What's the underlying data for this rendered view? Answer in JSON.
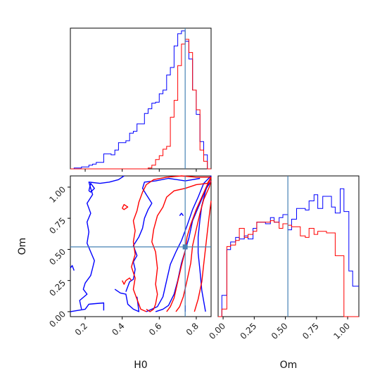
{
  "chart_data": {
    "type": "corner",
    "parameters": [
      "H0",
      "Om"
    ],
    "truth": {
      "H0": 0.74,
      "Om": 0.52
    },
    "colors": {
      "blue": "#0000ff",
      "red": "#ff0000",
      "truth": "#4682b4"
    },
    "H0_axis": {
      "range": [
        0.12,
        0.88
      ],
      "ticks": [
        0.2,
        0.4,
        0.6,
        0.8
      ],
      "tick_labels": [
        "0.2",
        "0.4",
        "0.6",
        "0.8"
      ],
      "xlabel": "H0"
    },
    "Om_axis": {
      "range": [
        -0.04,
        1.09
      ],
      "ticks": [
        0.0,
        0.25,
        0.5,
        0.75,
        1.0
      ],
      "tick_labels": [
        "0.00",
        "0.25",
        "0.50",
        "0.75",
        "1.00"
      ],
      "label": "Om"
    },
    "hist_H0": {
      "bin_width": 0.02,
      "blue": {
        "x": [
          0.12,
          0.14,
          0.16,
          0.18,
          0.2,
          0.22,
          0.24,
          0.26,
          0.28,
          0.3,
          0.32,
          0.34,
          0.36,
          0.38,
          0.4,
          0.42,
          0.44,
          0.46,
          0.48,
          0.5,
          0.52,
          0.54,
          0.56,
          0.58,
          0.6,
          0.62,
          0.64,
          0.66,
          0.68,
          0.7,
          0.72,
          0.74,
          0.76,
          0.78,
          0.8,
          0.82,
          0.84,
          0.86
        ],
        "y": [
          0,
          1,
          1,
          2,
          2,
          4,
          5,
          7,
          7,
          16,
          16,
          15,
          20,
          28,
          28,
          30,
          38,
          40,
          48,
          48,
          59,
          64,
          70,
          71,
          80,
          84,
          100,
          108,
          131,
          144,
          147,
          136,
          117,
          84,
          58,
          29,
          15,
          0
        ]
      },
      "red": {
        "x": [
          0.12,
          0.14,
          0.16,
          0.18,
          0.2,
          0.22,
          0.24,
          0.26,
          0.28,
          0.3,
          0.32,
          0.34,
          0.36,
          0.38,
          0.4,
          0.42,
          0.44,
          0.46,
          0.48,
          0.5,
          0.52,
          0.54,
          0.56,
          0.58,
          0.6,
          0.62,
          0.64,
          0.66,
          0.68,
          0.7,
          0.72,
          0.74,
          0.76,
          0.78,
          0.8,
          0.82,
          0.84,
          0.86
        ],
        "y": [
          0,
          0,
          0,
          0,
          0,
          0,
          0,
          0,
          0,
          0,
          0,
          0,
          0,
          0,
          0,
          0,
          0,
          0,
          0,
          0,
          0,
          1,
          4,
          10,
          14,
          21,
          24,
          55,
          73,
          110,
          133,
          138,
          124,
          84,
          63,
          20,
          8,
          0
        ]
      }
    },
    "hist_Om": {
      "blue": {
        "x": [
          -0.04,
          -0.01,
          0.03,
          0.06,
          0.1,
          0.13,
          0.17,
          0.2,
          0.24,
          0.27,
          0.31,
          0.34,
          0.38,
          0.41,
          0.45,
          0.48,
          0.52,
          0.55,
          0.59,
          0.62,
          0.66,
          0.69,
          0.73,
          0.76,
          0.8,
          0.83,
          0.87,
          0.9,
          0.94,
          0.97,
          1.01,
          1.04
        ],
        "y": [
          0,
          14,
          44,
          49,
          52,
          51,
          53,
          51,
          58,
          62,
          62,
          61,
          65,
          62,
          65,
          67,
          57,
          64,
          71,
          71,
          70,
          76,
          80,
          71,
          79,
          79,
          72,
          68,
          84,
          69,
          30,
          20
        ]
      },
      "red": {
        "x": [
          -0.04,
          -0.01,
          0.03,
          0.06,
          0.1,
          0.13,
          0.17,
          0.2,
          0.24,
          0.27,
          0.31,
          0.34,
          0.38,
          0.41,
          0.45,
          0.48,
          0.52,
          0.55,
          0.59,
          0.62,
          0.66,
          0.69,
          0.73,
          0.76,
          0.8,
          0.83,
          0.87,
          0.9,
          0.94,
          0.97,
          1.01,
          1.04
        ],
        "y": [
          0,
          5,
          46,
          47,
          50,
          58,
          52,
          54,
          56,
          62,
          62,
          62,
          63,
          62,
          58,
          61,
          60,
          59,
          59,
          53,
          52,
          58,
          54,
          56,
          56,
          55,
          55,
          40,
          40,
          0,
          0,
          0
        ]
      }
    },
    "contours_2d": {
      "blue": [
        [
          [
            0.53,
            0.0
          ],
          [
            0.56,
            0.02
          ],
          [
            0.59,
            0.04
          ],
          [
            0.62,
            0.12
          ],
          [
            0.64,
            0.25
          ],
          [
            0.66,
            0.38
          ],
          [
            0.69,
            0.48
          ],
          [
            0.72,
            0.57
          ],
          [
            0.75,
            0.69
          ],
          [
            0.78,
            0.82
          ],
          [
            0.81,
            0.92
          ],
          [
            0.84,
            1.03
          ],
          [
            0.88,
            1.09
          ]
        ],
        [
          [
            0.58,
            0.0
          ],
          [
            0.62,
            0.02
          ],
          [
            0.65,
            0.05
          ],
          [
            0.68,
            0.14
          ],
          [
            0.7,
            0.25
          ],
          [
            0.72,
            0.39
          ],
          [
            0.74,
            0.49
          ],
          [
            0.76,
            0.59
          ],
          [
            0.78,
            0.73
          ],
          [
            0.82,
            0.87
          ],
          [
            0.85,
            0.98
          ],
          [
            0.88,
            1.05
          ]
        ],
        [
          [
            0.85,
            0.0
          ],
          [
            0.83,
            0.17
          ],
          [
            0.82,
            0.33
          ],
          [
            0.81,
            0.47
          ],
          [
            0.81,
            0.6
          ],
          [
            0.82,
            0.74
          ],
          [
            0.83,
            0.85
          ],
          [
            0.85,
            0.97
          ],
          [
            0.88,
            1.09
          ]
        ],
        [
          [
            0.12,
            0.35
          ],
          [
            0.13,
            0.37
          ],
          [
            0.14,
            0.33
          ]
        ],
        [
          [
            0.22,
            0.97
          ],
          [
            0.23,
            1.03
          ],
          [
            0.25,
            0.99
          ],
          [
            0.23,
            0.96
          ],
          [
            0.22,
            0.97
          ]
        ],
        [
          [
            0.71,
            0.77
          ],
          [
            0.72,
            0.79
          ],
          [
            0.73,
            0.77
          ]
        ],
        [
          [
            0.74,
            0.0
          ],
          [
            0.74,
            0.02
          ],
          [
            0.74,
            0.05
          ]
        ],
        [
          [
            0.48,
            0.12
          ],
          [
            0.49,
            0.0
          ],
          [
            0.46,
            0.02
          ],
          [
            0.43,
            0.06
          ],
          [
            0.42,
            0.14
          ],
          [
            0.39,
            0.15
          ],
          [
            0.36,
            0.18
          ]
        ],
        [
          [
            0.42,
            0.16
          ],
          [
            0.44,
            0.24
          ],
          [
            0.46,
            0.26
          ],
          [
            0.47,
            0.34
          ],
          [
            0.46,
            0.4
          ],
          [
            0.48,
            0.45
          ],
          [
            0.46,
            0.53
          ],
          [
            0.49,
            0.6
          ],
          [
            0.51,
            0.67
          ],
          [
            0.52,
            0.75
          ],
          [
            0.54,
            0.82
          ],
          [
            0.56,
            0.87
          ],
          [
            0.53,
            0.94
          ],
          [
            0.51,
            0.99
          ],
          [
            0.52,
            1.04
          ],
          [
            0.58,
            1.05
          ],
          [
            0.65,
            1.07
          ],
          [
            0.74,
            1.05
          ],
          [
            0.82,
            1.07
          ]
        ],
        [
          [
            0.12,
            0.0
          ],
          [
            0.2,
            0.02
          ],
          [
            0.22,
            0.06
          ],
          [
            0.3,
            0.07
          ],
          [
            0.3,
            0.01
          ]
        ],
        [
          [
            0.18,
            0.02
          ],
          [
            0.17,
            0.09
          ],
          [
            0.21,
            0.14
          ],
          [
            0.19,
            0.18
          ],
          [
            0.2,
            0.23
          ],
          [
            0.23,
            0.29
          ],
          [
            0.24,
            0.35
          ],
          [
            0.25,
            0.41
          ],
          [
            0.23,
            0.48
          ],
          [
            0.21,
            0.55
          ],
          [
            0.22,
            0.64
          ],
          [
            0.21,
            0.72
          ],
          [
            0.23,
            0.79
          ],
          [
            0.21,
            0.87
          ],
          [
            0.24,
            0.94
          ],
          [
            0.22,
            1.04
          ],
          [
            0.28,
            1.03
          ],
          [
            0.33,
            1.04
          ],
          [
            0.38,
            1.06
          ],
          [
            0.41,
            1.09
          ]
        ]
      ],
      "red": [
        [
          [
            0.4,
            0.25
          ],
          [
            0.41,
            0.22
          ],
          [
            0.42,
            0.25
          ]
        ],
        [
          [
            0.42,
            0.25
          ],
          [
            0.44,
            0.27
          ],
          [
            0.45,
            0.25
          ]
        ],
        [
          [
            0.64,
            0.0
          ],
          [
            0.66,
            0.04
          ],
          [
            0.68,
            0.11
          ],
          [
            0.7,
            0.24
          ],
          [
            0.72,
            0.37
          ],
          [
            0.74,
            0.49
          ],
          [
            0.75,
            0.6
          ],
          [
            0.77,
            0.7
          ],
          [
            0.8,
            0.82
          ],
          [
            0.83,
            0.92
          ],
          [
            0.86,
            1.02
          ],
          [
            0.88,
            1.07
          ]
        ],
        [
          [
            0.69,
            0.0
          ],
          [
            0.71,
            0.04
          ],
          [
            0.73,
            0.12
          ],
          [
            0.75,
            0.25
          ],
          [
            0.77,
            0.39
          ],
          [
            0.78,
            0.53
          ],
          [
            0.8,
            0.66
          ],
          [
            0.82,
            0.79
          ],
          [
            0.84,
            0.9
          ],
          [
            0.87,
            1.0
          ],
          [
            0.88,
            1.05
          ]
        ],
        [
          [
            0.79,
            0.0
          ],
          [
            0.81,
            0.1
          ],
          [
            0.83,
            0.24
          ],
          [
            0.84,
            0.38
          ],
          [
            0.85,
            0.51
          ],
          [
            0.86,
            0.64
          ],
          [
            0.87,
            0.77
          ],
          [
            0.88,
            0.89
          ]
        ],
        [
          [
            0.53,
            0.02
          ],
          [
            0.55,
            0.0
          ],
          [
            0.57,
            0.02
          ],
          [
            0.58,
            0.06
          ],
          [
            0.59,
            0.14
          ],
          [
            0.58,
            0.22
          ],
          [
            0.59,
            0.35
          ],
          [
            0.58,
            0.48
          ],
          [
            0.56,
            0.56
          ],
          [
            0.57,
            0.66
          ],
          [
            0.59,
            0.77
          ],
          [
            0.62,
            0.84
          ],
          [
            0.64,
            0.92
          ],
          [
            0.68,
            0.97
          ],
          [
            0.74,
            0.99
          ],
          [
            0.8,
            1.02
          ],
          [
            0.86,
            1.03
          ],
          [
            0.88,
            1.08
          ]
        ],
        [
          [
            0.53,
            0.0
          ],
          [
            0.5,
            0.02
          ],
          [
            0.48,
            0.1
          ],
          [
            0.46,
            0.18
          ],
          [
            0.47,
            0.27
          ],
          [
            0.45,
            0.36
          ],
          [
            0.47,
            0.46
          ],
          [
            0.46,
            0.56
          ],
          [
            0.47,
            0.65
          ],
          [
            0.46,
            0.73
          ],
          [
            0.48,
            0.81
          ],
          [
            0.49,
            0.88
          ],
          [
            0.51,
            0.96
          ],
          [
            0.53,
            1.02
          ],
          [
            0.57,
            1.06
          ],
          [
            0.64,
            1.08
          ],
          [
            0.72,
            1.09
          ],
          [
            0.8,
            1.08
          ],
          [
            0.88,
            1.08
          ]
        ],
        [
          [
            0.4,
            0.83
          ],
          [
            0.41,
            0.86
          ],
          [
            0.43,
            0.84
          ],
          [
            0.41,
            0.82
          ],
          [
            0.4,
            0.83
          ]
        ]
      ]
    },
    "truth_marker": {
      "H0": 0.74,
      "Om": 0.52
    }
  }
}
